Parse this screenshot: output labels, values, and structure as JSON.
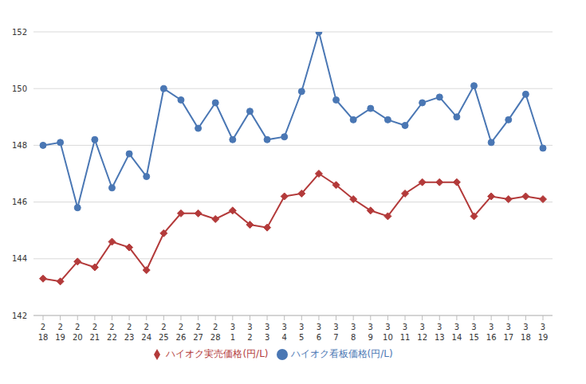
{
  "chart_data": {
    "type": "line",
    "categories": [
      "2\n18",
      "2\n19",
      "2\n20",
      "2\n21",
      "2\n22",
      "2\n23",
      "2\n24",
      "2\n25",
      "2\n26",
      "2\n27",
      "2\n28",
      "3\n1",
      "3\n2",
      "3\n3",
      "3\n4",
      "3\n5",
      "3\n6",
      "3\n7",
      "3\n8",
      "3\n9",
      "3\n10",
      "3\n11",
      "3\n12",
      "3\n13",
      "3\n14",
      "3\n15",
      "3\n16",
      "3\n17",
      "3\n18",
      "3\n19"
    ],
    "series": [
      {
        "name": "ハイオク看板価格(円/L)",
        "color": "#4a77b4",
        "marker": "circle",
        "values": [
          148.0,
          148.1,
          145.8,
          148.2,
          146.5,
          147.7,
          146.9,
          150.0,
          149.6,
          148.6,
          149.5,
          148.2,
          149.2,
          148.2,
          148.3,
          149.9,
          152.0,
          149.6,
          148.9,
          149.3,
          148.9,
          148.7,
          149.5,
          149.7,
          149.0,
          150.1,
          148.1,
          148.9,
          149.8,
          147.9
        ]
      },
      {
        "name": "ハイオク実売価格(円/L)",
        "color": "#b33a3a",
        "marker": "diamond",
        "values": [
          143.3,
          143.2,
          143.9,
          143.7,
          144.6,
          144.4,
          143.6,
          144.9,
          145.6,
          145.6,
          145.4,
          145.7,
          145.2,
          145.1,
          146.2,
          146.3,
          147.0,
          146.6,
          146.1,
          145.7,
          145.5,
          146.3,
          146.7,
          146.7,
          146.7,
          145.5,
          146.2,
          146.1,
          146.2,
          146.1
        ]
      }
    ],
    "ylim": [
      142,
      152
    ],
    "yticks": [
      142,
      144,
      146,
      148,
      150,
      152
    ],
    "grid": true,
    "legend": "bottom"
  }
}
